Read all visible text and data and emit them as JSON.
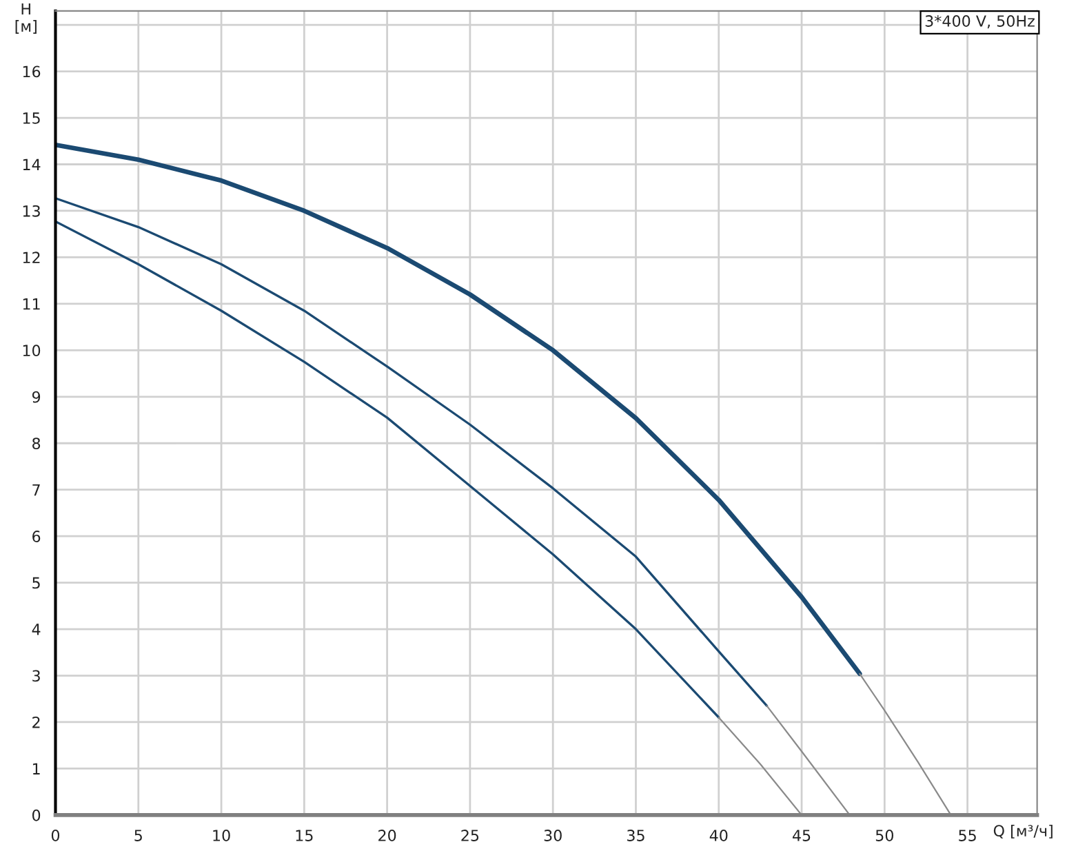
{
  "chart_data": {
    "type": "line",
    "xlabel": "Q [м³/ч]",
    "ylabel": "H\n[м]",
    "annotations": [
      "3*400 V, 50Hz"
    ],
    "xlim": [
      0,
      59.2
    ],
    "ylim": [
      0,
      17.3
    ],
    "xticks": [
      0,
      5,
      10,
      15,
      20,
      25,
      30,
      35,
      40,
      45,
      50,
      55
    ],
    "yticks": [
      0,
      1,
      2,
      3,
      4,
      5,
      6,
      7,
      8,
      9,
      10,
      11,
      12,
      13,
      14,
      15,
      16,
      {
        "value": 17,
        "label": null
      }
    ],
    "grid": true,
    "marker": "none",
    "line_style": "solid",
    "series": [
      {
        "color": "#1b4a72",
        "x": [
          0,
          5,
          10,
          15,
          20,
          25,
          30,
          35,
          40,
          45,
          48.5
        ],
        "values": [
          14.42,
          14.1,
          13.65,
          13.0,
          12.2,
          11.2,
          10.0,
          8.54,
          6.78,
          4.69,
          3.04
        ]
      },
      {
        "color": "#8a8a8a",
        "x": [
          48.5,
          50,
          52,
          54
        ],
        "values": [
          3.04,
          2.25,
          1.15,
          0
        ]
      },
      {
        "color": "#1b4a72",
        "x": [
          0,
          5,
          10,
          15,
          20,
          25,
          30,
          35,
          40,
          42.9
        ],
        "values": [
          13.27,
          12.65,
          11.85,
          10.85,
          9.65,
          8.4,
          7.03,
          5.56,
          3.52,
          2.35
        ]
      },
      {
        "color": "#8a8a8a",
        "x": [
          42.9,
          45,
          47.9
        ],
        "values": [
          2.35,
          1.37,
          0
        ]
      },
      {
        "color": "#1b4a72",
        "x": [
          0,
          5,
          10,
          15,
          20,
          25,
          30,
          35,
          40
        ],
        "values": [
          12.77,
          11.85,
          10.85,
          9.75,
          8.55,
          7.08,
          5.61,
          4.0,
          2.1
        ]
      },
      {
        "color": "#8a8a8a",
        "x": [
          40,
          42.5,
          45
        ],
        "values": [
          2.1,
          1.1,
          0
        ]
      }
    ]
  }
}
